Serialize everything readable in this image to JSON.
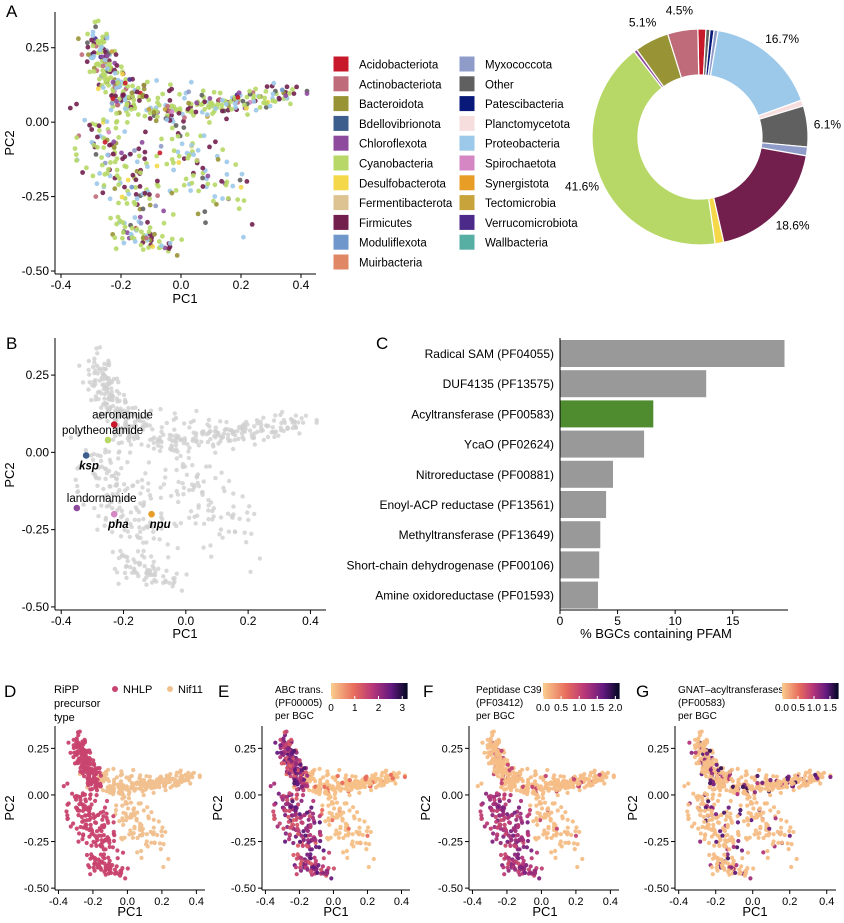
{
  "panels": {
    "A": "A",
    "B": "B",
    "C": "C",
    "D": "D",
    "E": "E",
    "F": "F",
    "G": "G"
  },
  "colors": {
    "Acidobacteriota": "#c8192a",
    "Actinobacteriota": "#bf6b7a",
    "Bacteroidota": "#989435",
    "Bdellovibrionota": "#3b5e8c",
    "Chloroflexota": "#8e4a9d",
    "Cyanobacteria": "#b7d866",
    "Desulfobacterota": "#f4d84a",
    "Fermentibacterota": "#dcc391",
    "Firmicutes": "#721f4e",
    "Moduliflexota": "#6f97cc",
    "Muirbacteria": "#e08766",
    "Myxococcota": "#8f9bc9",
    "Other": "#606060",
    "Patescibacteria": "#08197a",
    "Planctomycetota": "#f7dede",
    "Proteobacteria": "#9cc9ea",
    "Spirochaetota": "#d487c2",
    "Synergistota": "#e89d26",
    "Tectomicrobia": "#c8a23a",
    "Verrucomicrobiota": "#4b2a8a",
    "Wallbacteria": "#57aea3",
    "bar_gray": "#999999",
    "bar_highlight": "#4f8b2f",
    "NHLP": "#c8436e",
    "Nif11": "#f0c08e",
    "point_gray": "#d0d0d0"
  },
  "chart_data": [
    {
      "panel": "A",
      "type": "scatter",
      "xlabel": "PC1",
      "ylabel": "PC2",
      "xlim": [
        -0.42,
        0.45
      ],
      "ylim": [
        -0.51,
        0.37
      ],
      "xticks": [
        "-0.4",
        "-0.2",
        "0.0",
        "0.2",
        "0.4"
      ],
      "yticks": [
        "-0.50",
        "-0.25",
        "0.00",
        "0.25"
      ],
      "xtick_values": [
        -0.4,
        -0.2,
        0.0,
        0.2,
        0.4
      ],
      "ytick_values": [
        -0.5,
        -0.25,
        0.0,
        0.25
      ],
      "legend_col1": [
        "Acidobacteriota",
        "Actinobacteriota",
        "Bacteroidota",
        "Bdellovibrionota",
        "Chloroflexota",
        "Cyanobacteria",
        "Desulfobacterota",
        "Fermentibacterota",
        "Firmicutes",
        "Moduliflexota",
        "Muirbacteria"
      ],
      "legend_col2": [
        "Myxococcota",
        "Other",
        "Patescibacteria",
        "Planctomycetota",
        "Proteobacteria",
        "Spirochaetota",
        "Synergistota",
        "Tectomicrobia",
        "Verrucomicrobiota",
        "Wallbacteria"
      ],
      "legend_placement": "right"
    },
    {
      "panel": "A-pie",
      "type": "pie",
      "slices": [
        {
          "name": "Acidobacteriota",
          "value": 1.2
        },
        {
          "name": "Other",
          "value": 0.6
        },
        {
          "name": "Patescibacteria",
          "value": 0.6
        },
        {
          "name": "Myxococcota",
          "value": 0.6
        },
        {
          "name": "Proteobacteria",
          "value": 16.7,
          "label": "16.7%"
        },
        {
          "name": "Planctomycetota",
          "value": 0.9
        },
        {
          "name": "Other",
          "value": 6.1,
          "label": "6.1%"
        },
        {
          "name": "Myxococcota",
          "value": 1.3
        },
        {
          "name": "Firmicutes",
          "value": 18.6,
          "label": "18.6%"
        },
        {
          "name": "Desulfobacterota",
          "value": 1.3
        },
        {
          "name": "Cyanobacteria",
          "value": 41.6,
          "label": "41.6%"
        },
        {
          "name": "Chloroflexota",
          "value": 0.5
        },
        {
          "name": "Bacteroidota",
          "value": 5.1,
          "label": "5.1%"
        },
        {
          "name": "Actinobacteriota",
          "value": 4.5,
          "label": "4.5%"
        }
      ]
    },
    {
      "panel": "B",
      "type": "scatter",
      "xlabel": "PC1",
      "ylabel": "PC2",
      "xlim": [
        -0.42,
        0.45
      ],
      "ylim": [
        -0.51,
        0.37
      ],
      "xticks": [
        "-0.4",
        "-0.2",
        "0.0",
        "0.2",
        "0.4"
      ],
      "yticks": [
        "-0.50",
        "-0.25",
        "0.00",
        "0.25"
      ],
      "xtick_values": [
        -0.4,
        -0.2,
        0.0,
        0.2,
        0.4
      ],
      "ytick_values": [
        -0.5,
        -0.25,
        0.0,
        0.25
      ],
      "annotations": [
        {
          "label": "aeronamide",
          "x": -0.23,
          "y": 0.09,
          "color": "#c8192a",
          "italic": false
        },
        {
          "label": "polytheonamide",
          "x": -0.25,
          "y": 0.04,
          "color": "#b7d866",
          "italic": false
        },
        {
          "label": "ksp",
          "x": -0.32,
          "y": -0.01,
          "color": "#3b5e8c",
          "italic": true
        },
        {
          "label": "landornamide",
          "x": -0.35,
          "y": -0.18,
          "color": "#8e4a9d",
          "italic": false
        },
        {
          "label": "pha",
          "x": -0.23,
          "y": -0.2,
          "color": "#d487c2",
          "italic": true
        },
        {
          "label": "npu",
          "x": -0.11,
          "y": -0.2,
          "color": "#e89d26",
          "italic": true
        }
      ]
    },
    {
      "panel": "C",
      "type": "bar",
      "orientation": "horizontal",
      "xlabel": "% BGCs containing PFAM",
      "xlim": [
        0,
        19.8
      ],
      "xticks": [
        "0",
        "5",
        "10",
        "15"
      ],
      "xtick_values": [
        0,
        5,
        10,
        15
      ],
      "categories": [
        "Radical SAM (PF04055)",
        "DUF4135 (PF13575)",
        "Acyltransferase (PF00583)",
        "YcaO (PF02624)",
        "Nitroreductase (PF00881)",
        "Enoyl-ACP reductase (PF13561)",
        "Methyltransferase (PF13649)",
        "Short-chain dehydrogenase (PF00106)",
        "Amine oxidoreductase (PF01593)"
      ],
      "values": [
        19.5,
        12.7,
        8.1,
        7.3,
        4.6,
        4.0,
        3.5,
        3.4,
        3.3
      ],
      "highlight": "Acyltransferase (PF00583)"
    },
    {
      "panel": "D",
      "type": "scatter",
      "xlabel": "PC1",
      "ylabel": "PC2",
      "xticks": [
        "-0.4",
        "-0.2",
        "0.0",
        "0.2",
        "0.4"
      ],
      "yticks": [
        "-0.50",
        "-0.25",
        "0.00",
        "0.25"
      ],
      "xtick_values": [
        -0.4,
        -0.2,
        0.0,
        0.2,
        0.4
      ],
      "ytick_values": [
        -0.5,
        -0.25,
        0.0,
        0.25
      ],
      "legend_title": [
        "RiPP",
        "precursor",
        "type"
      ],
      "series": [
        {
          "name": "NHLP"
        },
        {
          "name": "Nif11"
        }
      ]
    },
    {
      "panel": "E",
      "type": "scatter",
      "xlabel": "PC1",
      "ylabel": "PC2",
      "xticks": [
        "-0.4",
        "-0.2",
        "0.0",
        "0.2",
        "0.4"
      ],
      "yticks": [
        "-0.50",
        "-0.25",
        "0.00",
        "0.25"
      ],
      "xtick_values": [
        -0.4,
        -0.2,
        0.0,
        0.2,
        0.4
      ],
      "ytick_values": [
        -0.5,
        -0.25,
        0.0,
        0.25
      ],
      "colorbar_title": [
        "ABC trans.",
        "(PF00005)",
        "per BGC"
      ],
      "colorbar_ticks": [
        "0",
        "1",
        "2",
        "3"
      ],
      "colorbar_tick_values": [
        0,
        1,
        2,
        3
      ],
      "colorbar_range": [
        0,
        3.2
      ]
    },
    {
      "panel": "F",
      "type": "scatter",
      "xlabel": "PC1",
      "ylabel": "PC2",
      "xticks": [
        "-0.4",
        "-0.2",
        "0.0",
        "0.2",
        "0.4"
      ],
      "yticks": [
        "-0.50",
        "-0.25",
        "0.00",
        "0.25"
      ],
      "xtick_values": [
        -0.4,
        -0.2,
        0.0,
        0.2,
        0.4
      ],
      "ytick_values": [
        -0.5,
        -0.25,
        0.0,
        0.25
      ],
      "colorbar_title": [
        "Peptidase C39",
        "(PF03412)",
        "per BGC"
      ],
      "colorbar_ticks": [
        "0.0",
        "0.5",
        "1.0",
        "1.5",
        "2.0"
      ],
      "colorbar_tick_values": [
        0,
        0.5,
        1.0,
        1.5,
        2.0
      ],
      "colorbar_range": [
        0,
        2.1
      ]
    },
    {
      "panel": "G",
      "type": "scatter",
      "xlabel": "PC1",
      "ylabel": "PC2",
      "xticks": [
        "-0.4",
        "-0.2",
        "0.0",
        "0.2",
        "0.4"
      ],
      "yticks": [
        "-0.50",
        "-0.25",
        "0.00",
        "0.25"
      ],
      "xtick_values": [
        -0.4,
        -0.2,
        0.0,
        0.2,
        0.4
      ],
      "ytick_values": [
        -0.5,
        -0.25,
        0.0,
        0.25
      ],
      "colorbar_title": [
        "GNAT–acyltransferases",
        "(PF00583)",
        "per BGC"
      ],
      "colorbar_ticks": [
        "0.0",
        "0.5",
        "1.0",
        "1.5"
      ],
      "colorbar_tick_values": [
        0,
        0.5,
        1.0,
        1.5
      ],
      "colorbar_range": [
        0,
        1.75
      ]
    }
  ]
}
